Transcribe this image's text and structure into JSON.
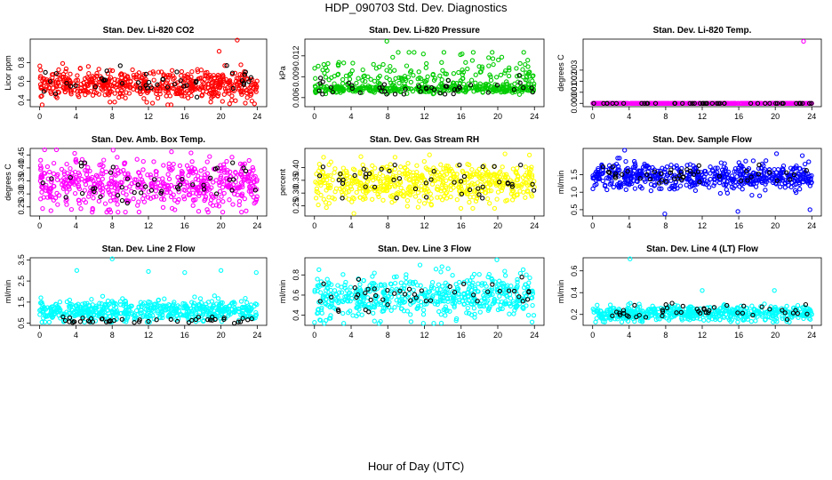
{
  "title": "HDP_090703  Std. Dev. Diagnostics",
  "xlabel": "Hour of Day (UTC)",
  "chart_data": [
    {
      "type": "scatter",
      "title": "Stan. Dev. Li-820 CO2",
      "ylabel": "Licor ppm",
      "xlim": [
        0,
        24
      ],
      "ylim": [
        0.33,
        1.05
      ],
      "xticks": [
        0,
        4,
        8,
        12,
        16,
        20,
        24
      ],
      "yticks": [
        0.4,
        0.6,
        0.8
      ],
      "ytick_labels": [
        "0.4",
        "0.6",
        "0.8"
      ],
      "series": [
        {
          "color": "#ff0000",
          "n": 560,
          "mean": 0.56,
          "sd": 0.075,
          "min": 0.35,
          "max": 0.95
        },
        {
          "color": "#000000",
          "n": 45,
          "mean": 0.6,
          "sd": 0.07,
          "min": 0.4,
          "max": 0.8
        }
      ],
      "outliers": [
        {
          "x": 21.8,
          "y": 1.04,
          "color": "#ff0000"
        },
        {
          "x": 19.8,
          "y": 0.92,
          "color": "#ff0000"
        },
        {
          "x": 23.7,
          "y": 0.36,
          "color": "#ff0000"
        }
      ]
    },
    {
      "type": "scatter",
      "title": "Stan. Dev. Li-820 Pressure",
      "ylabel": "kPa",
      "xlim": [
        0,
        24
      ],
      "ylim": [
        0.0047,
        0.0144
      ],
      "xticks": [
        0,
        4,
        8,
        12,
        16,
        20,
        24
      ],
      "yticks": [
        0.006,
        0.009,
        0.012
      ],
      "ytick_labels": [
        "0.006",
        "0.009",
        "0.012"
      ],
      "series": [
        {
          "color": "#00cc00",
          "n": 520,
          "mean": 0.0072,
          "sd": 0.0011,
          "min": 0.0062,
          "max": 0.0125,
          "skew": true
        },
        {
          "color": "#000000",
          "n": 45,
          "mean": 0.0073,
          "sd": 0.0008,
          "min": 0.0065,
          "max": 0.0098
        }
      ],
      "outliers": [
        {
          "x": 7.9,
          "y": 0.0141,
          "color": "#00cc00"
        }
      ]
    },
    {
      "type": "scatter",
      "title": "Stan. Dev. Li-820 Temp.",
      "ylabel": "degrees C",
      "xlim": [
        0,
        24
      ],
      "ylim": [
        -0.0003,
        0.0058
      ],
      "xticks": [
        0,
        4,
        8,
        12,
        16,
        20,
        24
      ],
      "yticks": [
        0.0,
        0.001,
        0.002,
        0.003
      ],
      "ytick_labels": [
        "0.000",
        "0.001",
        "0.002",
        "0.003"
      ],
      "series": [
        {
          "color": "#ff00ff",
          "n": 520,
          "mean": 0.0,
          "sd": 0.0,
          "min": 0.0,
          "max": 0.0
        },
        {
          "color": "#000000",
          "n": 45,
          "mean": 0.0,
          "sd": 0.0,
          "min": 0.0,
          "max": 0.0
        }
      ],
      "outliers": [
        {
          "x": 23.1,
          "y": 0.0056,
          "color": "#ff00ff"
        }
      ]
    },
    {
      "type": "scatter",
      "title": "Stan. Dev. Amb. Box Temp.",
      "ylabel": "degrees C",
      "xlim": [
        0,
        24
      ],
      "ylim": [
        0.215,
        0.475
      ],
      "xticks": [
        0,
        4,
        8,
        12,
        16,
        20,
        24
      ],
      "yticks": [
        0.25,
        0.3,
        0.35,
        0.4,
        0.45
      ],
      "ytick_labels": [
        "0.25",
        "0.30",
        "0.35",
        "0.40",
        "0.45"
      ],
      "series": [
        {
          "color": "#ff00ff",
          "n": 560,
          "mean": 0.34,
          "sd": 0.045,
          "min": 0.23,
          "max": 0.47
        },
        {
          "color": "#000000",
          "n": 45,
          "mean": 0.34,
          "sd": 0.04,
          "min": 0.26,
          "max": 0.42
        }
      ],
      "outliers": []
    },
    {
      "type": "scatter",
      "title": "Stan. Dev. Gas Stream RH",
      "ylabel": "percent",
      "xlim": [
        0,
        24
      ],
      "ylim": [
        0.21,
        0.475
      ],
      "xticks": [
        0,
        4,
        8,
        12,
        16,
        20,
        24
      ],
      "yticks": [
        0.25,
        0.3,
        0.35,
        0.4
      ],
      "ytick_labels": [
        "0.25",
        "0.30",
        "0.35",
        "0.40"
      ],
      "series": [
        {
          "color": "#ffff00",
          "n": 560,
          "mean": 0.34,
          "sd": 0.04,
          "min": 0.24,
          "max": 0.46
        },
        {
          "color": "#000000",
          "n": 45,
          "mean": 0.35,
          "sd": 0.035,
          "min": 0.28,
          "max": 0.41
        }
      ],
      "outliers": [
        {
          "x": 4.3,
          "y": 0.22,
          "color": "#ffff00"
        }
      ]
    },
    {
      "type": "scatter",
      "title": "Stan. Dev. Sample Flow",
      "ylabel": "ml/min",
      "xlim": [
        0,
        24
      ],
      "ylim": [
        0.32,
        2.25
      ],
      "xticks": [
        0,
        4,
        8,
        12,
        16,
        20,
        24
      ],
      "yticks": [
        0.5,
        1.0,
        1.5
      ],
      "ytick_labels": [
        "0.5",
        "1.0",
        "1.5"
      ],
      "series": [
        {
          "color": "#0000ff",
          "n": 560,
          "mean": 1.45,
          "sd": 0.18,
          "min": 0.6,
          "max": 2.1
        },
        {
          "color": "#000000",
          "n": 45,
          "mean": 1.5,
          "sd": 0.12,
          "min": 1.2,
          "max": 1.8
        }
      ],
      "outliers": [
        {
          "x": 7.9,
          "y": 0.38,
          "color": "#0000ff"
        },
        {
          "x": 15.9,
          "y": 0.45,
          "color": "#0000ff"
        },
        {
          "x": 23.8,
          "y": 0.5,
          "color": "#0000ff"
        },
        {
          "x": 3.5,
          "y": 2.2,
          "color": "#0000ff"
        }
      ]
    },
    {
      "type": "scatter",
      "title": "Stan. Dev. Line 2 Flow",
      "ylabel": "ml/min",
      "xlim": [
        0,
        24
      ],
      "ylim": [
        0.4,
        3.6
      ],
      "xticks": [
        0,
        4,
        8,
        12,
        16,
        20,
        24
      ],
      "yticks": [
        0.5,
        1.5,
        2.5,
        3.5
      ],
      "ytick_labels": [
        "0.5",
        "1.5",
        "2.5",
        "3.5"
      ],
      "series": [
        {
          "color": "#00ffff",
          "n": 560,
          "mean": 1.1,
          "sd": 0.25,
          "min": 0.55,
          "max": 2.0
        },
        {
          "color": "#000000",
          "n": 45,
          "mean": 0.65,
          "sd": 0.08,
          "min": 0.5,
          "max": 0.8
        }
      ],
      "outliers": [
        {
          "x": 4.1,
          "y": 3.0,
          "color": "#00ffff"
        },
        {
          "x": 8.0,
          "y": 3.55,
          "color": "#00ffff"
        },
        {
          "x": 12.0,
          "y": 2.95,
          "color": "#00ffff"
        },
        {
          "x": 16.0,
          "y": 2.9,
          "color": "#00ffff"
        },
        {
          "x": 20.0,
          "y": 3.0,
          "color": "#00ffff"
        },
        {
          "x": 23.9,
          "y": 2.9,
          "color": "#00ffff"
        }
      ]
    },
    {
      "type": "scatter",
      "title": "Stan. Dev. Line 3 Flow",
      "ylabel": "ml/min",
      "xlim": [
        0,
        24
      ],
      "ylim": [
        0.3,
        0.97
      ],
      "xticks": [
        0,
        4,
        8,
        12,
        16,
        20,
        24
      ],
      "yticks": [
        0.4,
        0.6,
        0.8
      ],
      "ytick_labels": [
        "0.4",
        "0.6",
        "0.8"
      ],
      "series": [
        {
          "color": "#00ffff",
          "n": 560,
          "mean": 0.58,
          "sd": 0.1,
          "min": 0.32,
          "max": 0.92
        },
        {
          "color": "#000000",
          "n": 45,
          "mean": 0.6,
          "sd": 0.08,
          "min": 0.42,
          "max": 0.8
        }
      ],
      "outliers": [
        {
          "x": 19.9,
          "y": 0.95,
          "color": "#00ffff"
        }
      ]
    },
    {
      "type": "scatter",
      "title": "Stan. Dev. Line 4 (LT) Flow",
      "ylabel": "ml/min",
      "xlim": [
        0,
        24
      ],
      "ylim": [
        0.1,
        0.72
      ],
      "xticks": [
        0,
        4,
        8,
        12,
        16,
        20,
        24
      ],
      "yticks": [
        0.2,
        0.4,
        0.6
      ],
      "ytick_labels": [
        "0.2",
        "0.4",
        "0.6"
      ],
      "series": [
        {
          "color": "#00ffff",
          "n": 560,
          "mean": 0.21,
          "sd": 0.035,
          "min": 0.13,
          "max": 0.34
        },
        {
          "color": "#000000",
          "n": 45,
          "mean": 0.22,
          "sd": 0.035,
          "min": 0.15,
          "max": 0.31
        }
      ],
      "outliers": [
        {
          "x": 4.1,
          "y": 0.71,
          "color": "#00ffff"
        },
        {
          "x": 12.0,
          "y": 0.42,
          "color": "#00ffff"
        },
        {
          "x": 19.9,
          "y": 0.42,
          "color": "#00ffff"
        }
      ]
    }
  ]
}
